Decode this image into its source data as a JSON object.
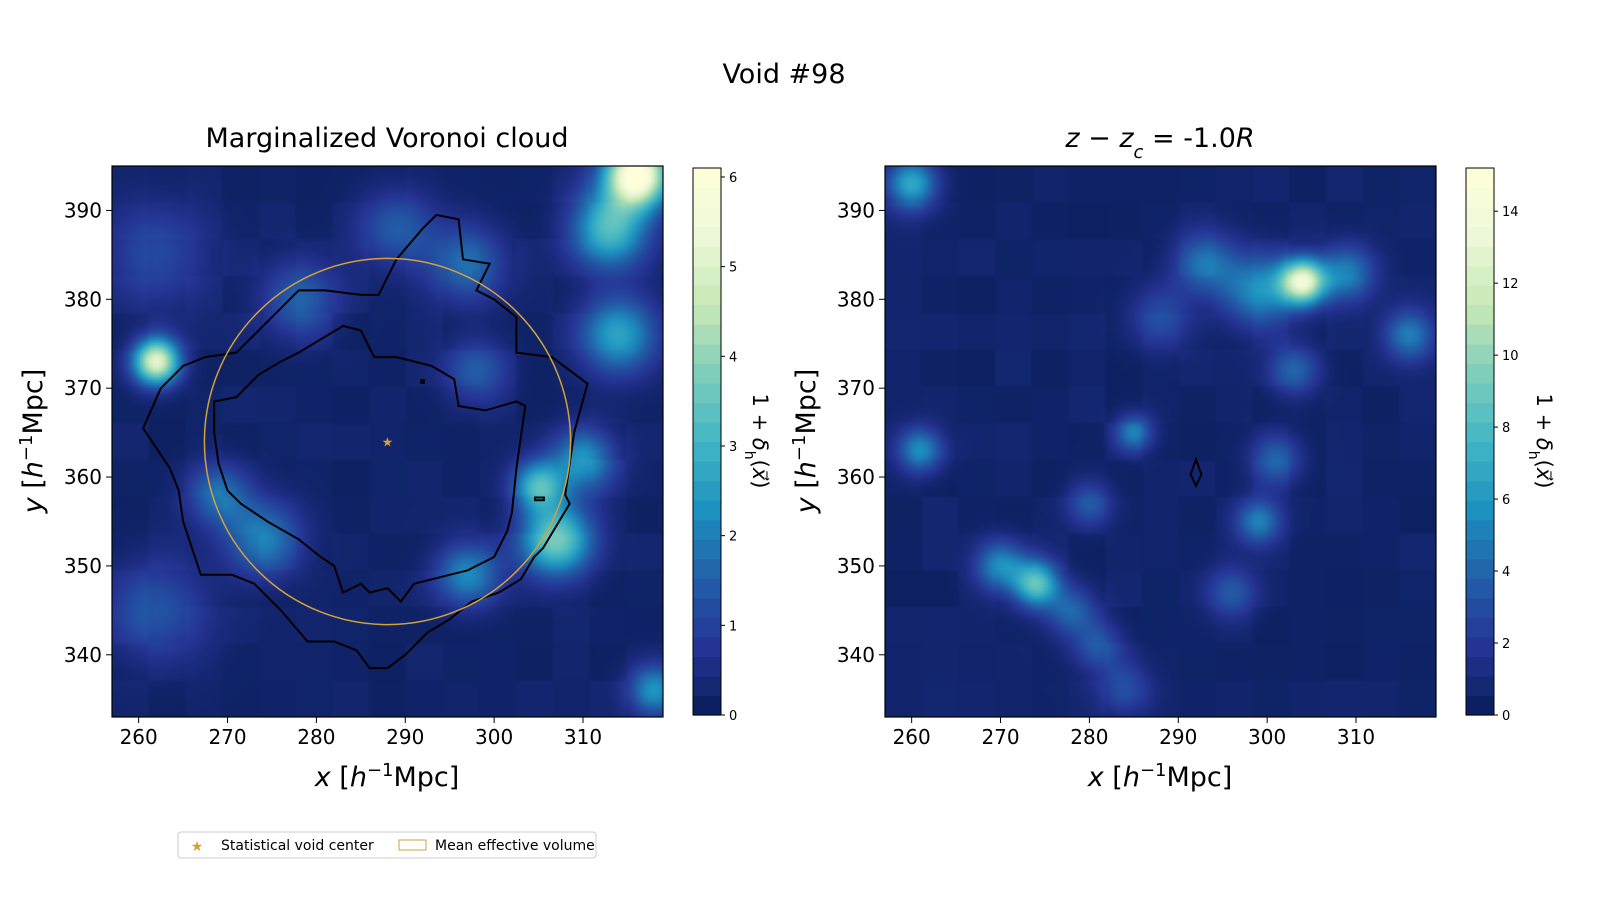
{
  "figure": {
    "suptitle": "Void #98"
  },
  "legend": {
    "items": [
      {
        "label": "Statistical void center",
        "marker": "star",
        "color": "#d4a03a"
      },
      {
        "label": "Mean effective volume",
        "marker": "rect-outline",
        "color": "#d4a03a"
      }
    ],
    "placement": "bottom-left below panels"
  },
  "colors": {
    "void_center": "#d4a03a",
    "contour": "#000000",
    "colormap": "YlGnBu"
  },
  "chart_data": [
    {
      "type": "heatmap",
      "title": "Marginalized Voronoi cloud",
      "xlabel": "x [h⁻¹Mpc]",
      "ylabel": "y [h⁻¹Mpc]",
      "xlim": [
        257,
        319
      ],
      "ylim": [
        333,
        395
      ],
      "xticks": [
        260,
        270,
        280,
        290,
        300,
        310
      ],
      "yticks": [
        340,
        350,
        360,
        370,
        380,
        390
      ],
      "colorbar": {
        "label": "1 + δh(x⃗)",
        "range": [
          0,
          6.1
        ],
        "ticks": [
          0,
          1,
          2,
          3,
          4,
          5,
          6
        ]
      },
      "void_center": {
        "x": 288,
        "y": 364
      },
      "mean_effective_volume": {
        "center_x": 288,
        "center_y": 364,
        "radius": 20.6
      },
      "density_peaks": [
        {
          "x": 262,
          "y": 373,
          "value": 5.0,
          "sigma": 1.8
        },
        {
          "x": 316,
          "y": 394,
          "value": 6.1,
          "sigma": 2.5
        },
        {
          "x": 313,
          "y": 388,
          "value": 3.0,
          "sigma": 3.0
        },
        {
          "x": 314,
          "y": 376,
          "value": 2.4,
          "sigma": 3.0
        },
        {
          "x": 307,
          "y": 353,
          "value": 3.5,
          "sigma": 2.8
        },
        {
          "x": 305,
          "y": 359,
          "value": 2.8,
          "sigma": 2.0
        },
        {
          "x": 297,
          "y": 349,
          "value": 2.0,
          "sigma": 2.5
        },
        {
          "x": 274,
          "y": 353,
          "value": 1.8,
          "sigma": 3.0
        },
        {
          "x": 269,
          "y": 358,
          "value": 1.6,
          "sigma": 2.5
        },
        {
          "x": 278,
          "y": 380,
          "value": 1.4,
          "sigma": 3.0
        },
        {
          "x": 297,
          "y": 384,
          "value": 1.6,
          "sigma": 3.0
        },
        {
          "x": 289,
          "y": 388,
          "value": 1.3,
          "sigma": 3.0
        },
        {
          "x": 318,
          "y": 336,
          "value": 2.2,
          "sigma": 2.0
        },
        {
          "x": 310,
          "y": 362,
          "value": 2.2,
          "sigma": 2.5
        },
        {
          "x": 262,
          "y": 385,
          "value": 1.0,
          "sigma": 4.0
        },
        {
          "x": 262,
          "y": 345,
          "value": 1.2,
          "sigma": 4.0
        },
        {
          "x": 298,
          "y": 372,
          "value": 1.2,
          "sigma": 2.5
        }
      ],
      "contours": [
        {
          "closed": true,
          "points": [
            [
              260.5,
              365.5
            ],
            [
              262.5,
              370
            ],
            [
              265,
              372.5
            ],
            [
              267.5,
              373.5
            ],
            [
              271,
              374
            ],
            [
              275,
              378
            ],
            [
              278,
              381
            ],
            [
              281,
              381
            ],
            [
              285,
              380.5
            ],
            [
              287,
              380.5
            ],
            [
              289,
              384.5
            ],
            [
              292,
              388
            ],
            [
              293.5,
              389.5
            ],
            [
              296,
              389
            ],
            [
              296.5,
              384.5
            ],
            [
              299.5,
              384
            ],
            [
              298,
              381
            ],
            [
              300,
              380
            ],
            [
              302.5,
              378
            ],
            [
              302.5,
              374
            ],
            [
              306.5,
              373.5
            ],
            [
              310.5,
              370.5
            ],
            [
              309,
              365
            ],
            [
              308,
              358
            ],
            [
              308.5,
              357
            ],
            [
              305.5,
              352
            ],
            [
              304.5,
              351
            ],
            [
              303,
              348.5
            ],
            [
              300.5,
              347
            ],
            [
              297.5,
              346
            ],
            [
              295,
              344
            ],
            [
              292.5,
              342.5
            ],
            [
              290,
              340
            ],
            [
              288,
              338.5
            ],
            [
              286,
              338.5
            ],
            [
              284.5,
              340.5
            ],
            [
              282,
              341.5
            ],
            [
              279,
              341.5
            ],
            [
              276,
              345
            ],
            [
              273,
              348
            ],
            [
              270.5,
              349
            ],
            [
              267,
              349
            ],
            [
              265,
              355
            ],
            [
              264.5,
              358.5
            ],
            [
              263.5,
              361
            ],
            [
              260.5,
              365.5
            ]
          ]
        },
        {
          "closed": true,
          "points": [
            [
              268.5,
              368.5
            ],
            [
              271,
              369
            ],
            [
              273.5,
              371.5
            ],
            [
              276,
              373
            ],
            [
              278,
              374
            ],
            [
              280.5,
              375.5
            ],
            [
              283,
              377
            ],
            [
              285,
              376.5
            ],
            [
              286.5,
              373.5
            ],
            [
              289,
              373.5
            ],
            [
              291,
              373
            ],
            [
              293,
              372.5
            ],
            [
              295.5,
              371
            ],
            [
              296,
              368
            ],
            [
              299,
              367.5
            ],
            [
              302.5,
              368.5
            ],
            [
              303.5,
              368
            ],
            [
              302.5,
              361
            ],
            [
              302,
              356
            ],
            [
              301.5,
              354
            ],
            [
              300,
              351
            ],
            [
              298,
              350
            ],
            [
              297,
              349.5
            ],
            [
              295,
              349
            ],
            [
              291,
              348
            ],
            [
              289.5,
              346
            ],
            [
              288,
              347.5
            ],
            [
              286,
              347
            ],
            [
              285,
              348
            ],
            [
              283,
              347
            ],
            [
              282,
              350
            ],
            [
              280.5,
              351
            ],
            [
              278,
              353
            ],
            [
              274.5,
              355
            ],
            [
              271.5,
              357
            ],
            [
              270,
              358.5
            ],
            [
              269,
              361.5
            ],
            [
              268.5,
              365
            ],
            [
              268.5,
              368.5
            ]
          ]
        },
        {
          "closed": true,
          "points": [
            [
              304.6,
              357.4
            ],
            [
              305.6,
              357.4
            ],
            [
              305.6,
              357.7
            ],
            [
              304.6,
              357.7
            ]
          ]
        },
        {
          "closed": true,
          "points": [
            [
              291.8,
              370.9
            ],
            [
              292.1,
              370.9
            ],
            [
              292.1,
              370.6
            ],
            [
              291.8,
              370.6
            ]
          ]
        }
      ]
    },
    {
      "type": "heatmap",
      "title": "z − z_c = -1.0R",
      "xlabel": "x [h⁻¹Mpc]",
      "ylabel": "y [h⁻¹Mpc]",
      "xlim": [
        257,
        319
      ],
      "ylim": [
        333,
        395
      ],
      "xticks": [
        260,
        270,
        280,
        290,
        300,
        310
      ],
      "yticks": [
        340,
        350,
        360,
        370,
        380,
        390
      ],
      "colorbar": {
        "label": "1 + δh(x⃗)",
        "range": [
          0,
          15.2
        ],
        "ticks": [
          0,
          2,
          4,
          6,
          8,
          10,
          12,
          14
        ]
      },
      "density_peaks": [
        {
          "x": 304,
          "y": 382,
          "value": 12.5,
          "sigma": 1.8
        },
        {
          "x": 299,
          "y": 381,
          "value": 5.0,
          "sigma": 2.8
        },
        {
          "x": 293,
          "y": 384,
          "value": 4.0,
          "sigma": 2.5
        },
        {
          "x": 309,
          "y": 383,
          "value": 4.5,
          "sigma": 2.2
        },
        {
          "x": 316,
          "y": 376,
          "value": 4.5,
          "sigma": 2.0
        },
        {
          "x": 260,
          "y": 393,
          "value": 6.5,
          "sigma": 2.0
        },
        {
          "x": 261,
          "y": 363,
          "value": 5.0,
          "sigma": 1.8
        },
        {
          "x": 274,
          "y": 348,
          "value": 8.0,
          "sigma": 1.8
        },
        {
          "x": 270,
          "y": 350,
          "value": 5.0,
          "sigma": 2.0
        },
        {
          "x": 278,
          "y": 345,
          "value": 3.5,
          "sigma": 2.0
        },
        {
          "x": 281,
          "y": 341,
          "value": 3.0,
          "sigma": 2.0
        },
        {
          "x": 284,
          "y": 336,
          "value": 2.8,
          "sigma": 2.0
        },
        {
          "x": 285,
          "y": 365,
          "value": 4.5,
          "sigma": 1.5
        },
        {
          "x": 280,
          "y": 357,
          "value": 3.0,
          "sigma": 1.8
        },
        {
          "x": 299,
          "y": 355,
          "value": 4.5,
          "sigma": 1.8
        },
        {
          "x": 301,
          "y": 362,
          "value": 3.5,
          "sigma": 2.0
        },
        {
          "x": 303,
          "y": 372,
          "value": 3.5,
          "sigma": 2.0
        },
        {
          "x": 296,
          "y": 347,
          "value": 3.0,
          "sigma": 2.0
        },
        {
          "x": 288,
          "y": 378,
          "value": 2.5,
          "sigma": 2.5
        }
      ],
      "contours": [
        {
          "closed": true,
          "points": [
            [
              292,
              362
            ],
            [
              292.6,
              360.3
            ],
            [
              292,
              359
            ],
            [
              291.4,
              360.3
            ]
          ]
        }
      ]
    }
  ]
}
